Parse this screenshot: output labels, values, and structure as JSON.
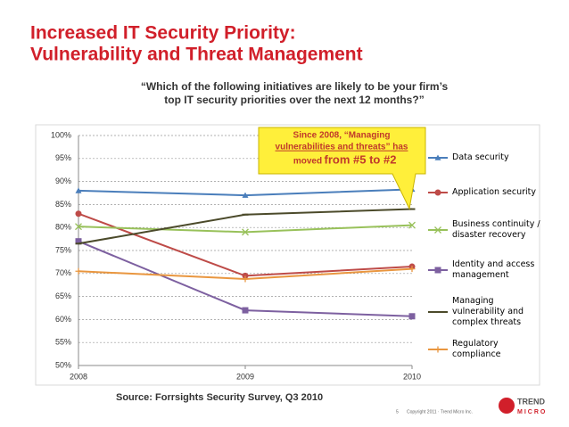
{
  "chart_data": {
    "type": "line",
    "title": [
      "Increased IT Security Priority:",
      "Vulnerability and Threat Management"
    ],
    "subtitle": [
      "“Which of the following initiatives are likely to be your firm’s",
      "top IT security priorities over the next 12 months?”"
    ],
    "categories": [
      "2008",
      "2009",
      "2010"
    ],
    "series": [
      {
        "name": "Data security",
        "color": "#4a7ebb",
        "marker": "triangle",
        "values": [
          88,
          87,
          88.3
        ]
      },
      {
        "name": "Application security",
        "color": "#be4b48",
        "marker": "circle",
        "values": [
          83,
          69.5,
          71.5
        ]
      },
      {
        "name": "Business continuity / disaster recovery",
        "color": "#98c15a",
        "marker": "x",
        "values": [
          80.2,
          79,
          80.5
        ]
      },
      {
        "name": "Identity and access management",
        "color": "#7d60a0",
        "marker": "square",
        "values": [
          77,
          62,
          60.7
        ]
      },
      {
        "name": "Managing vulnerability and complex threats",
        "color": "#4b4a2a",
        "marker": "dash",
        "values": [
          76.5,
          82.8,
          84
        ]
      },
      {
        "name": "Regulatory compliance",
        "color": "#e9963f",
        "marker": "plus",
        "values": [
          70.5,
          68.8,
          71
        ]
      }
    ],
    "ylim": [
      50,
      100
    ],
    "yticks": [
      {
        "value": 50,
        "label": "50%"
      },
      {
        "value": 55,
        "label": "55%"
      },
      {
        "value": 60,
        "label": "60%"
      },
      {
        "value": 65,
        "label": "65%"
      },
      {
        "value": 70,
        "label": "70%"
      },
      {
        "value": 75,
        "label": "75%"
      },
      {
        "value": 80,
        "label": "80%"
      },
      {
        "value": 85,
        "label": "85%"
      },
      {
        "value": 90,
        "label": "90%"
      },
      {
        "value": 95,
        "label": "95%"
      },
      {
        "value": 100,
        "label": "100%"
      }
    ],
    "grid": true,
    "annotation": [
      "Since 2008, “Managing",
      "vulnerabilities and threats” has",
      "moved",
      "from #5 to #2"
    ],
    "source": "Source: Forrsights Security Survey, Q3 2010"
  },
  "footer": {
    "page": "5",
    "copyright": "Copyright 2011 · Trend Micro Inc.",
    "logo": [
      "TREND",
      "MICRO"
    ]
  }
}
